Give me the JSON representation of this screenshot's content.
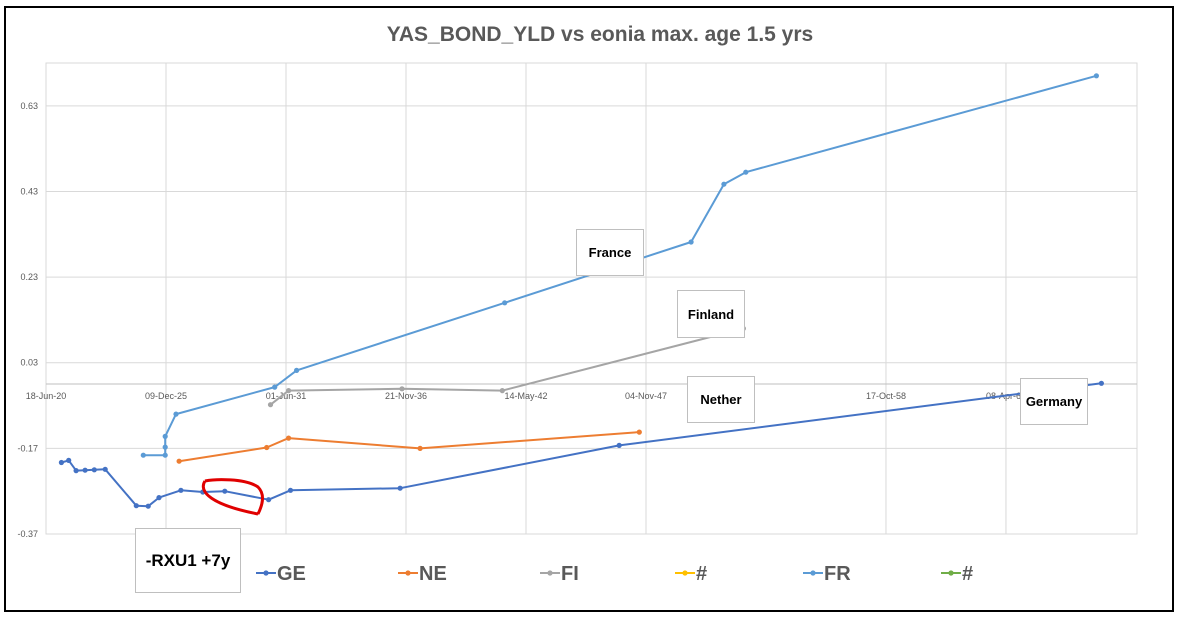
{
  "chart_data": {
    "type": "line",
    "title": "YAS_BOND_YLD vs eonia max. age 1.5 yrs",
    "xlabel": "",
    "ylabel": "",
    "x_axis": {
      "type": "date",
      "ticks": [
        "18-Jun-20",
        "09-Dec-25",
        "01-Jun-31",
        "21-Nov-36",
        "14-May-42",
        "04-Nov-47",
        "17-Oct-58",
        "08-Apr-64"
      ],
      "range": [
        "2020-06-18",
        "2070-04-01"
      ]
    },
    "y_axis": {
      "ticks": [
        -0.37,
        -0.17,
        0.03,
        0.23,
        0.43,
        0.63
      ],
      "range": [
        -0.37,
        0.73
      ]
    },
    "grid": true,
    "legend_position": "bottom",
    "series": [
      {
        "name": "GE",
        "color": "#4472c4",
        "points": [
          [
            "2021-03-01",
            -0.203
          ],
          [
            "2021-07-01",
            -0.198
          ],
          [
            "2021-11-01",
            -0.222
          ],
          [
            "2022-04-01",
            -0.221
          ],
          [
            "2022-09-01",
            -0.22
          ],
          [
            "2023-03-01",
            -0.219
          ],
          [
            "2024-08-01",
            -0.304
          ],
          [
            "2025-02-15",
            -0.305
          ],
          [
            "2025-08-15",
            -0.285
          ],
          [
            "2026-08-15",
            -0.268
          ],
          [
            "2027-08-15",
            -0.272
          ],
          [
            "2028-08-15",
            -0.27
          ],
          [
            "2030-08-15",
            -0.29
          ],
          [
            "2031-08-15",
            -0.268
          ],
          [
            "2036-08-15",
            -0.263
          ],
          [
            "2046-08-15",
            -0.163
          ],
          [
            "2068-08-15",
            -0.018
          ]
        ]
      },
      {
        "name": "NE",
        "color": "#ed7d31",
        "points": [
          [
            "2026-07-15",
            -0.2
          ],
          [
            "2030-07-15",
            -0.168
          ],
          [
            "2031-07-15",
            -0.146
          ],
          [
            "2037-07-15",
            -0.17
          ],
          [
            "2047-07-15",
            -0.132
          ]
        ]
      },
      {
        "name": "FI",
        "color": "#a5a5a5",
        "points": [
          [
            "2030-09-15",
            -0.068
          ],
          [
            "2031-07-15",
            -0.035
          ],
          [
            "2036-09-15",
            -0.031
          ],
          [
            "2041-04-15",
            -0.035
          ],
          [
            "2052-04-15",
            0.11
          ]
        ]
      },
      {
        "name": "#",
        "color": "#ffc000",
        "points": []
      },
      {
        "name": "FR",
        "color": "#5b9bd5",
        "points": [
          [
            "2024-11-25",
            -0.186
          ],
          [
            "2025-11-25",
            -0.186
          ],
          [
            "2025-11-25",
            -0.167
          ],
          [
            "2025-11-25",
            -0.142
          ],
          [
            "2026-05-25",
            -0.09
          ],
          [
            "2030-11-25",
            -0.027
          ],
          [
            "2031-11-25",
            0.012
          ],
          [
            "2041-05-25",
            0.17
          ],
          [
            "2049-11-25",
            0.312
          ],
          [
            "2051-05-25",
            0.447
          ],
          [
            "2052-05-25",
            0.475
          ],
          [
            "2068-05-25",
            0.7
          ]
        ]
      },
      {
        "name": "#",
        "color": "#70ad47",
        "points": []
      }
    ],
    "annotations": [
      "France",
      "Finland",
      "Nether",
      "Germany",
      "-RXU1 +7y"
    ]
  }
}
